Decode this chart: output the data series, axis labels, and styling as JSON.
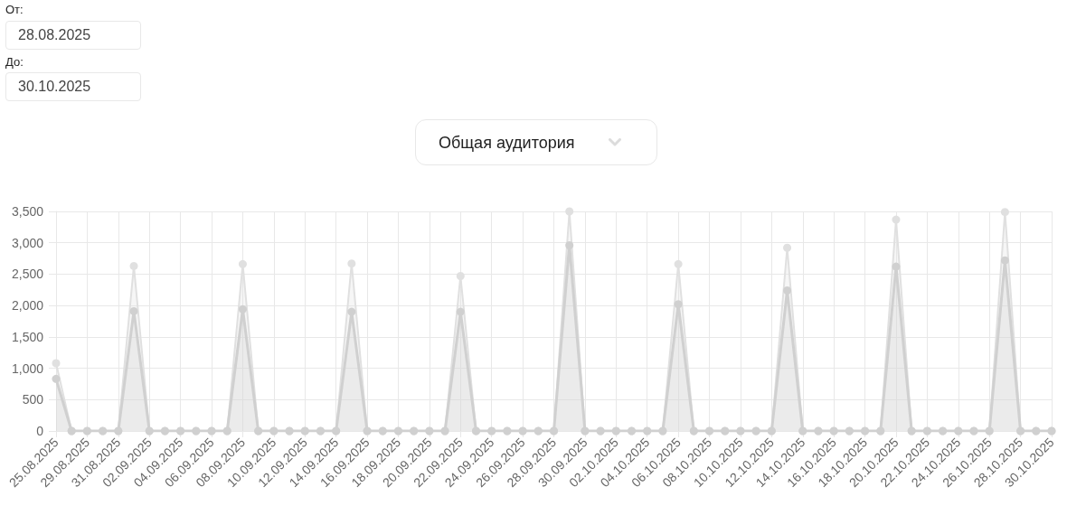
{
  "chart_data": {
    "type": "line",
    "annotations": [
      "От:",
      "28.08.2025",
      "До:",
      "30.10.2025",
      "Общая аудитория"
    ],
    "categories": [
      "25.08.2025",
      null,
      "29.08.2025",
      null,
      "31.08.2025",
      null,
      "02.09.2025",
      null,
      "04.09.2025",
      null,
      "06.09.2025",
      null,
      "08.09.2025",
      null,
      "10.09.2025",
      null,
      "12.09.2025",
      null,
      "14.09.2025",
      null,
      "16.09.2025",
      null,
      "18.09.2025",
      null,
      "20.09.2025",
      null,
      "22.09.2025",
      null,
      "24.09.2025",
      null,
      "26.09.2025",
      null,
      "28.09.2025",
      null,
      "30.09.2025",
      null,
      "02.10.2025",
      null,
      "04.10.2025",
      null,
      "06.10.2025",
      null,
      "08.10.2025",
      null,
      "10.10.2025",
      null,
      "12.10.2025",
      null,
      "14.10.2025",
      null,
      "16.10.2025",
      null,
      "18.10.2025",
      null,
      "20.10.2025",
      null,
      "22.10.2025",
      null,
      "24.10.2025",
      null,
      "26.10.2025",
      null,
      "28.10.2025",
      null,
      "30.10.2025"
    ],
    "series": [
      {
        "type": "area",
        "color": "#e0e0e0",
        "values": [
          1080,
          0,
          0,
          0,
          0,
          2630,
          0,
          0,
          0,
          0,
          0,
          0,
          2660,
          0,
          0,
          0,
          0,
          0,
          0,
          2670,
          0,
          0,
          0,
          0,
          0,
          0,
          2470,
          0,
          0,
          0,
          0,
          0,
          0,
          3500,
          0,
          0,
          0,
          0,
          0,
          0,
          2660,
          0,
          0,
          0,
          0,
          0,
          0,
          2920,
          0,
          0,
          0,
          0,
          0,
          0,
          3370,
          0,
          0,
          0,
          0,
          0,
          0,
          3490,
          0,
          0,
          0
        ]
      },
      {
        "type": "area",
        "color": "#d0d0d0",
        "values": [
          830,
          0,
          0,
          0,
          0,
          1910,
          0,
          0,
          0,
          0,
          0,
          0,
          1940,
          0,
          0,
          0,
          0,
          0,
          0,
          1900,
          0,
          0,
          0,
          0,
          0,
          0,
          1900,
          0,
          0,
          0,
          0,
          0,
          0,
          2960,
          0,
          0,
          0,
          0,
          0,
          0,
          2020,
          0,
          0,
          0,
          0,
          0,
          0,
          2240,
          0,
          0,
          0,
          0,
          0,
          0,
          2620,
          0,
          0,
          0,
          0,
          0,
          0,
          2720,
          0,
          0,
          0
        ]
      }
    ],
    "ylim": [
      0,
      3500
    ],
    "yticks": [
      0,
      500,
      {
        "value": 1000,
        "label": "1,000"
      },
      {
        "value": 1500,
        "label": "1,500"
      },
      {
        "value": 2000,
        "label": "2,000"
      },
      {
        "value": 2500,
        "label": "2,500"
      },
      {
        "value": 3000,
        "label": "3,000"
      },
      {
        "value": 3500,
        "label": "3,500"
      }
    ],
    "grid": true,
    "marker": "circle",
    "line_style": "solid"
  }
}
